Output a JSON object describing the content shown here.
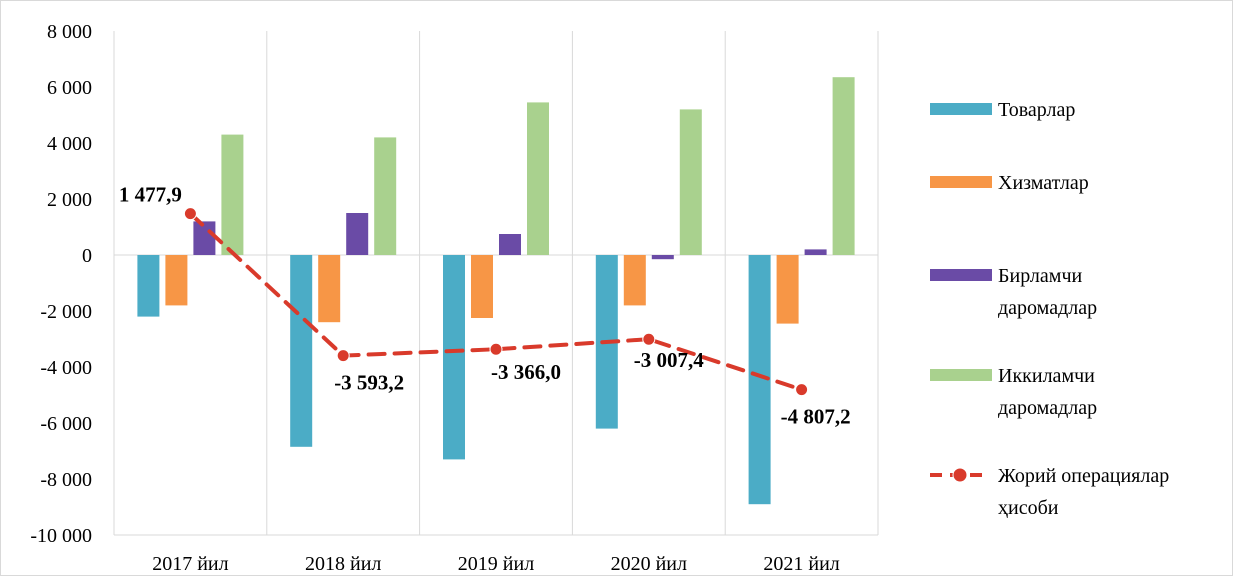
{
  "chart_data": {
    "type": "bar",
    "categories": [
      "2017 йил",
      "2018 йил",
      "2019 йил",
      "2020 йил",
      "2021 йил"
    ],
    "ylim": [
      -10000,
      8000
    ],
    "yticks": [
      8000,
      6000,
      4000,
      2000,
      0,
      -2000,
      -4000,
      -6000,
      -8000,
      -10000
    ],
    "ytick_labels": [
      "8 000",
      "6 000",
      "4 000",
      "2 000",
      "0",
      "-2 000",
      "-4 000",
      "-6 000",
      "-8 000",
      "-10 000"
    ],
    "grid": "vertical",
    "legend_position": "right",
    "series": [
      {
        "name": "Товарлар",
        "type": "bar",
        "color": "#4BACC6",
        "values": [
          -2200,
          -6850,
          -7300,
          -6200,
          -8900
        ]
      },
      {
        "name": "Хизматлар",
        "type": "bar",
        "color": "#F79646",
        "values": [
          -1800,
          -2400,
          -2250,
          -1800,
          -2450
        ]
      },
      {
        "name": "Бирламчи даромадлар",
        "legend_lines": [
          "Бирламчи",
          "даромадлар"
        ],
        "type": "bar",
        "color": "#6A4BA6",
        "values": [
          1200,
          1500,
          750,
          -150,
          200
        ]
      },
      {
        "name": "Иккиламчи даромадлар",
        "legend_lines": [
          "Иккиламчи",
          "даромадлар"
        ],
        "type": "bar",
        "color": "#A9D18E",
        "values": [
          4300,
          4200,
          5450,
          5200,
          6350
        ]
      },
      {
        "name": "Жорий операциялар ҳисоби",
        "legend_lines": [
          "Жорий операциялар",
          "ҳисоби"
        ],
        "type": "line",
        "color": "#D93A2B",
        "values": [
          1477.9,
          -3593.2,
          -3366.0,
          -3007.4,
          -4807.2
        ],
        "labels": [
          "1 477,9",
          "-3 593,2",
          "-3 366,0",
          "-3 007,4",
          "-4 807,2"
        ]
      }
    ]
  }
}
